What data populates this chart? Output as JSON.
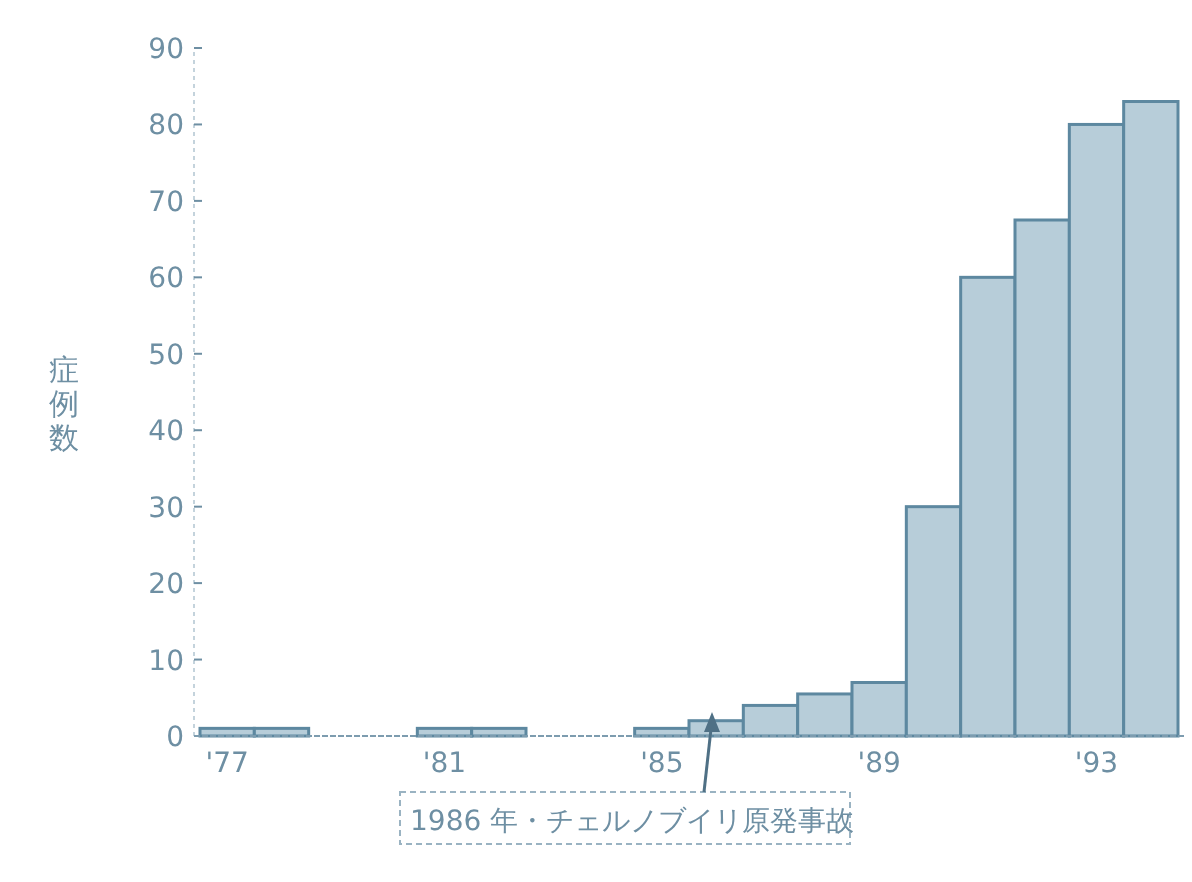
{
  "chart_data": {
    "type": "bar",
    "ylabel": "症例数",
    "categories": [
      "'77",
      null,
      null,
      null,
      "'81",
      null,
      null,
      null,
      "'85",
      null,
      null,
      null,
      "'89",
      null,
      null,
      null,
      "'93",
      null
    ],
    "values": [
      1,
      1,
      0,
      0,
      1,
      1,
      0,
      0,
      1,
      2,
      4,
      5.5,
      7,
      30,
      60,
      67.5,
      80,
      83
    ],
    "color": "#b7cdd9",
    "ylim": [
      0,
      90
    ],
    "yticks": [
      0,
      10,
      20,
      30,
      40,
      50,
      60,
      70,
      80,
      90
    ],
    "grid": false,
    "annotations": [
      "1986 年・チェルノブイリ原発事故"
    ]
  }
}
